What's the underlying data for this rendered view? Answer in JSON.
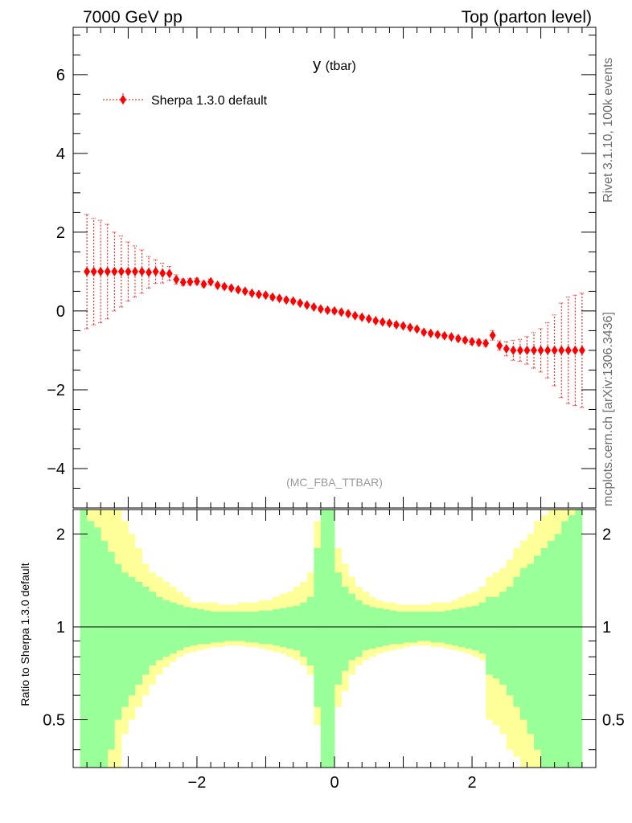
{
  "header": {
    "left": "7000 GeV pp",
    "right": "Top (parton level)"
  },
  "side_labels": {
    "rivet": "Rivet 3.1.10,  100k events",
    "mcplots": "mcplots.cern.ch [arXiv:1306.3436]"
  },
  "chart_data": [
    {
      "type": "scatter",
      "title": "y",
      "title_sub": "(tbar)",
      "watermark": "(MC_FBA_TTBAR)",
      "xlim": [
        -3.8,
        3.8
      ],
      "ylim": [
        -5.0,
        7.2
      ],
      "yticks": [
        -4,
        -2,
        0,
        2,
        4,
        6
      ],
      "legend": {
        "placement": "top-left"
      },
      "series": [
        {
          "name": "Sherpa 1.3.0 default",
          "color": "#ff0000",
          "marker": "diamond",
          "x": [
            -3.6,
            -3.5,
            -3.4,
            -3.3,
            -3.2,
            -3.1,
            -3.0,
            -2.9,
            -2.8,
            -2.7,
            -2.6,
            -2.5,
            -2.4,
            -2.3,
            -2.2,
            -2.1,
            -2.0,
            -1.9,
            -1.8,
            -1.7,
            -1.6,
            -1.5,
            -1.4,
            -1.3,
            -1.2,
            -1.1,
            -1.0,
            -0.9,
            -0.8,
            -0.7,
            -0.6,
            -0.5,
            -0.4,
            -0.3,
            -0.2,
            -0.1,
            0.0,
            0.1,
            0.2,
            0.3,
            0.4,
            0.5,
            0.6,
            0.7,
            0.8,
            0.9,
            1.0,
            1.1,
            1.2,
            1.3,
            1.4,
            1.5,
            1.6,
            1.7,
            1.8,
            1.9,
            2.0,
            2.1,
            2.2,
            2.3,
            2.4,
            2.5,
            2.6,
            2.7,
            2.8,
            2.9,
            3.0,
            3.1,
            3.2,
            3.3,
            3.4,
            3.5,
            3.6
          ],
          "y": [
            1.0,
            1.0,
            1.0,
            1.0,
            1.0,
            1.0,
            1.0,
            1.0,
            1.0,
            0.98,
            1.0,
            0.96,
            0.95,
            0.8,
            0.73,
            0.74,
            0.75,
            0.68,
            0.74,
            0.65,
            0.62,
            0.58,
            0.54,
            0.5,
            0.45,
            0.42,
            0.4,
            0.35,
            0.32,
            0.28,
            0.25,
            0.2,
            0.15,
            0.1,
            0.05,
            0.02,
            0.0,
            -0.03,
            -0.07,
            -0.12,
            -0.16,
            -0.2,
            -0.25,
            -0.28,
            -0.31,
            -0.35,
            -0.38,
            -0.42,
            -0.46,
            -0.54,
            -0.57,
            -0.6,
            -0.63,
            -0.66,
            -0.7,
            -0.74,
            -0.78,
            -0.8,
            -0.82,
            -0.62,
            -0.88,
            -0.96,
            -1.0,
            -1.0,
            -1.0,
            -1.0,
            -1.0,
            -1.0,
            -1.0,
            -1.0,
            -1.0,
            -1.0,
            -1.0
          ],
          "yerr": [
            1.45,
            1.35,
            1.3,
            1.2,
            1.0,
            0.9,
            0.75,
            0.65,
            0.55,
            0.4,
            0.3,
            0.25,
            0.18,
            0.12,
            0.08,
            0.08,
            0.08,
            0.07,
            0.07,
            0.06,
            0.06,
            0.05,
            0.05,
            0.05,
            0.05,
            0.05,
            0.05,
            0.05,
            0.05,
            0.05,
            0.05,
            0.05,
            0.05,
            0.05,
            0.05,
            0.05,
            0.05,
            0.05,
            0.05,
            0.05,
            0.05,
            0.05,
            0.05,
            0.05,
            0.05,
            0.05,
            0.05,
            0.05,
            0.05,
            0.05,
            0.05,
            0.05,
            0.05,
            0.05,
            0.06,
            0.06,
            0.07,
            0.08,
            0.08,
            0.12,
            0.12,
            0.18,
            0.25,
            0.28,
            0.35,
            0.45,
            0.55,
            0.7,
            0.9,
            1.2,
            1.35,
            1.4,
            1.45
          ]
        }
      ]
    },
    {
      "type": "area",
      "ylabel": "Ratio to Sherpa 1.3.0 default",
      "xlim": [
        -3.8,
        3.8
      ],
      "ylim": [
        0.35,
        2.4
      ],
      "ylog": true,
      "xticks": [
        -2,
        0,
        2
      ],
      "yticks": [
        0.5,
        1,
        2
      ],
      "reference_line": 1,
      "bands": [
        {
          "color": "#ffff99",
          "x": [
            -3.65,
            -3.55,
            -3.45,
            -3.35,
            -3.25,
            -3.15,
            -3.05,
            -2.95,
            -2.85,
            -2.75,
            -2.65,
            -2.55,
            -2.45,
            -2.35,
            -2.25,
            -2.15,
            -2.05,
            -1.95,
            -1.85,
            -1.75,
            -1.65,
            -1.55,
            -1.45,
            -1.35,
            -1.25,
            -1.15,
            -1.05,
            -0.95,
            -0.85,
            -0.75,
            -0.65,
            -0.55,
            -0.45,
            -0.35,
            -0.25,
            -0.15,
            -0.05,
            0.05,
            0.15,
            0.25,
            0.35,
            0.45,
            0.55,
            0.65,
            0.75,
            0.85,
            0.95,
            1.05,
            1.15,
            1.25,
            1.35,
            1.45,
            1.55,
            1.65,
            1.75,
            1.85,
            1.95,
            2.05,
            2.15,
            2.25,
            2.35,
            2.45,
            2.55,
            2.65,
            2.75,
            2.85,
            2.95,
            3.05,
            3.15,
            3.25,
            3.35,
            3.45,
            3.55
          ],
          "upper": [
            2.4,
            2.4,
            2.4,
            2.4,
            2.4,
            2.4,
            2.2,
            2.0,
            1.8,
            1.6,
            1.5,
            1.45,
            1.4,
            1.35,
            1.3,
            1.25,
            1.2,
            1.2,
            1.2,
            1.2,
            1.18,
            1.18,
            1.18,
            1.2,
            1.2,
            1.2,
            1.22,
            1.22,
            1.25,
            1.28,
            1.3,
            1.35,
            1.4,
            1.5,
            2.2,
            2.4,
            2.4,
            1.8,
            1.6,
            1.45,
            1.35,
            1.3,
            1.25,
            1.22,
            1.2,
            1.2,
            1.18,
            1.18,
            1.18,
            1.18,
            1.18,
            1.2,
            1.2,
            1.2,
            1.22,
            1.25,
            1.28,
            1.3,
            1.35,
            1.45,
            1.5,
            1.55,
            1.65,
            1.8,
            1.9,
            2.0,
            2.2,
            2.3,
            2.4,
            2.4,
            2.4,
            2.4,
            2.4
          ],
          "lower": [
            0.35,
            0.35,
            0.35,
            0.35,
            0.35,
            0.35,
            0.45,
            0.5,
            0.55,
            0.6,
            0.65,
            0.7,
            0.74,
            0.77,
            0.8,
            0.82,
            0.83,
            0.84,
            0.85,
            0.86,
            0.86,
            0.87,
            0.87,
            0.87,
            0.86,
            0.86,
            0.85,
            0.84,
            0.83,
            0.82,
            0.8,
            0.78,
            0.75,
            0.7,
            0.48,
            0.35,
            0.35,
            0.55,
            0.62,
            0.7,
            0.75,
            0.78,
            0.8,
            0.82,
            0.83,
            0.84,
            0.85,
            0.86,
            0.87,
            0.87,
            0.87,
            0.86,
            0.86,
            0.85,
            0.84,
            0.83,
            0.82,
            0.8,
            0.78,
            0.5,
            0.48,
            0.45,
            0.4,
            0.38,
            0.35,
            0.35,
            0.35,
            0.35,
            0.35,
            0.35,
            0.35,
            0.35,
            0.35
          ]
        },
        {
          "color": "#99ff99",
          "x": [
            -3.65,
            -3.55,
            -3.45,
            -3.35,
            -3.25,
            -3.15,
            -3.05,
            -2.95,
            -2.85,
            -2.75,
            -2.65,
            -2.55,
            -2.45,
            -2.35,
            -2.25,
            -2.15,
            -2.05,
            -1.95,
            -1.85,
            -1.75,
            -1.65,
            -1.55,
            -1.45,
            -1.35,
            -1.25,
            -1.15,
            -1.05,
            -0.95,
            -0.85,
            -0.75,
            -0.65,
            -0.55,
            -0.45,
            -0.35,
            -0.25,
            -0.15,
            -0.05,
            0.05,
            0.15,
            0.25,
            0.35,
            0.45,
            0.55,
            0.65,
            0.75,
            0.85,
            0.95,
            1.05,
            1.15,
            1.25,
            1.35,
            1.45,
            1.55,
            1.65,
            1.75,
            1.85,
            1.95,
            2.05,
            2.15,
            2.25,
            2.35,
            2.45,
            2.55,
            2.65,
            2.75,
            2.85,
            2.95,
            3.05,
            3.15,
            3.25,
            3.35,
            3.45,
            3.55
          ],
          "upper": [
            2.4,
            2.2,
            2.1,
            1.9,
            1.75,
            1.6,
            1.5,
            1.45,
            1.4,
            1.35,
            1.3,
            1.25,
            1.22,
            1.2,
            1.18,
            1.16,
            1.15,
            1.14,
            1.13,
            1.12,
            1.12,
            1.12,
            1.12,
            1.12,
            1.12,
            1.12,
            1.13,
            1.13,
            1.14,
            1.15,
            1.16,
            1.17,
            1.2,
            1.25,
            1.8,
            2.4,
            2.4,
            1.5,
            1.35,
            1.28,
            1.22,
            1.18,
            1.16,
            1.15,
            1.14,
            1.13,
            1.12,
            1.12,
            1.12,
            1.12,
            1.12,
            1.12,
            1.12,
            1.13,
            1.14,
            1.15,
            1.16,
            1.17,
            1.2,
            1.25,
            1.25,
            1.3,
            1.35,
            1.45,
            1.55,
            1.6,
            1.7,
            1.8,
            1.9,
            2.0,
            2.2,
            2.3,
            2.4
          ],
          "lower": [
            0.35,
            0.35,
            0.35,
            0.35,
            0.4,
            0.5,
            0.55,
            0.6,
            0.65,
            0.7,
            0.75,
            0.78,
            0.8,
            0.82,
            0.84,
            0.86,
            0.87,
            0.88,
            0.88,
            0.89,
            0.89,
            0.9,
            0.9,
            0.9,
            0.89,
            0.89,
            0.88,
            0.88,
            0.87,
            0.86,
            0.85,
            0.84,
            0.8,
            0.75,
            0.55,
            0.35,
            0.35,
            0.65,
            0.72,
            0.78,
            0.8,
            0.84,
            0.85,
            0.86,
            0.87,
            0.88,
            0.88,
            0.89,
            0.89,
            0.9,
            0.9,
            0.89,
            0.89,
            0.88,
            0.87,
            0.86,
            0.85,
            0.84,
            0.82,
            0.7,
            0.68,
            0.65,
            0.6,
            0.55,
            0.5,
            0.45,
            0.4,
            0.35,
            0.35,
            0.35,
            0.35,
            0.35,
            0.35
          ]
        }
      ]
    }
  ]
}
